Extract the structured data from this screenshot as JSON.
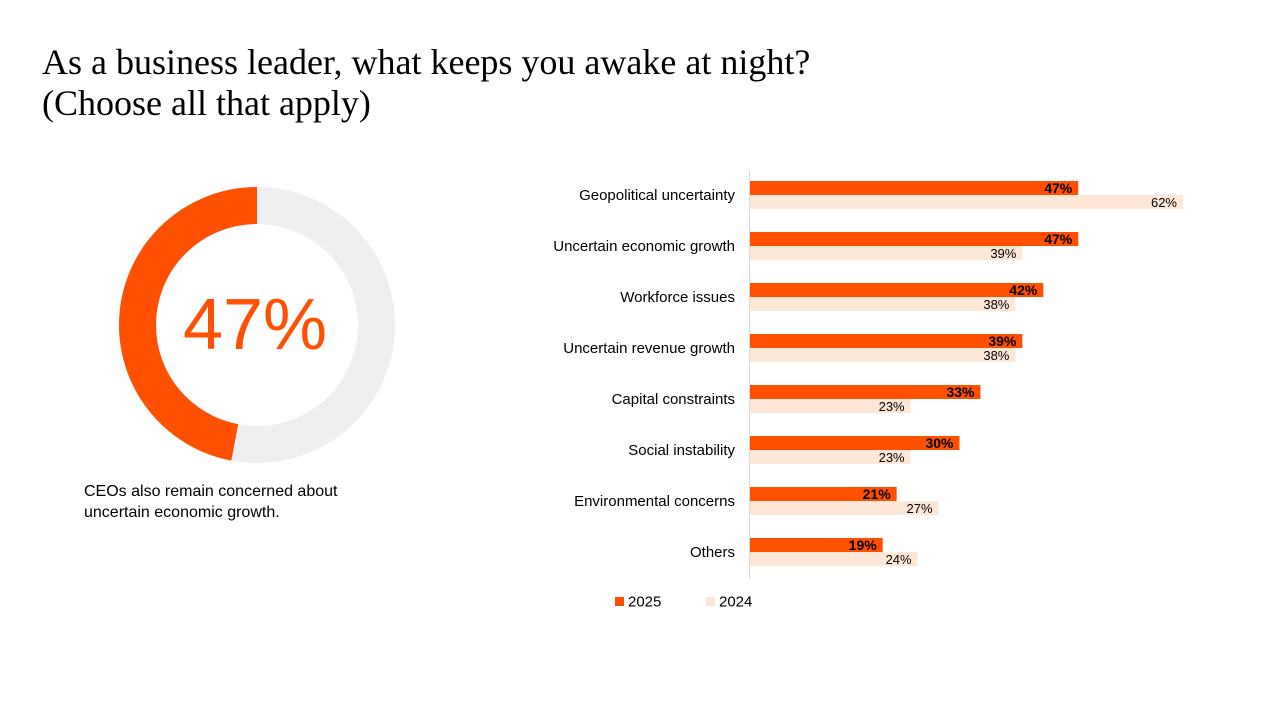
{
  "slide": {
    "title_lines": [
      "As a business leader, what keeps you awake at night?",
      "(Choose all that apply)"
    ],
    "highlight": {
      "value_label": "47%",
      "value": 47,
      "caption": "CEOs also remain concerned about uncertain economic growth."
    }
  },
  "colors": {
    "accent": "#fe5000",
    "light": "#fde8d8",
    "track": "#eeeff1",
    "text": "#000000"
  },
  "chart_data": [
    {
      "type": "pie",
      "title": "",
      "categories": [
        "",
        ""
      ],
      "values": [
        47,
        53
      ],
      "center_label": "47%"
    },
    {
      "type": "bar",
      "orientation": "horizontal",
      "title": "",
      "xlabel": "",
      "ylabel": "",
      "xlim": [
        0,
        70
      ],
      "grid": false,
      "legend_position": "bottom",
      "categories": [
        "Geopolitical uncertainty",
        "Uncertain economic growth",
        "Workforce issues",
        "Uncertain revenue growth",
        "Capital constraints",
        "Social instability",
        "Environmental concerns",
        "Others"
      ],
      "series": [
        {
          "name": "2025",
          "color": "#fe5000",
          "values": [
            47,
            47,
            42,
            39,
            33,
            30,
            21,
            19
          ],
          "labels": [
            "47%",
            "47%",
            "42%",
            "39%",
            "33%",
            "30%",
            "21%",
            "19%"
          ]
        },
        {
          "name": "2024",
          "color": "#fde8d8",
          "values": [
            62,
            39,
            38,
            38,
            23,
            23,
            27,
            24
          ],
          "labels": [
            "62%",
            "39%",
            "38%",
            "38%",
            "23%",
            "23%",
            "27%",
            "24%"
          ]
        }
      ]
    }
  ]
}
